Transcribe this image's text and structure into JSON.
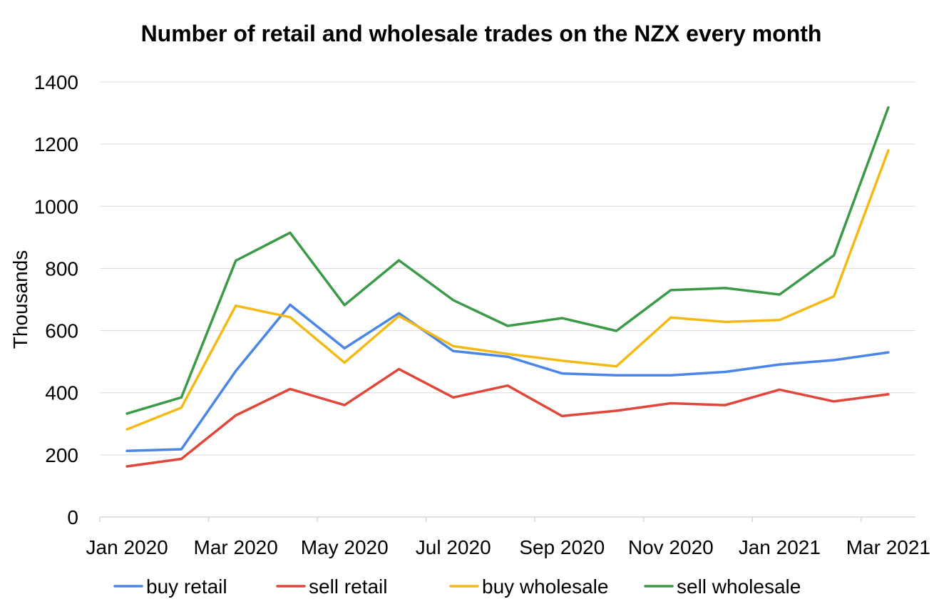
{
  "chart_data": {
    "type": "line",
    "title": "Number of retail and wholesale trades on the NZX every month",
    "ylabel": "Thousands",
    "xlabel": "",
    "ylim": [
      0,
      1400
    ],
    "y_ticks": [
      "0",
      "200",
      "400",
      "600",
      "800",
      "1000",
      "1200",
      "1400"
    ],
    "x": [
      "Jan 2020",
      "Feb 2020",
      "Mar 2020",
      "Apr 2020",
      "May 2020",
      "Jun 2020",
      "Jul 2020",
      "Aug 2020",
      "Sep 2020",
      "Oct 2020",
      "Nov 2020",
      "Dec 2020",
      "Jan 2021",
      "Feb 2021",
      "Mar 2021"
    ],
    "x_tick_labels": [
      "Jan 2020",
      "Mar 2020",
      "May 2020",
      "Jul 2020",
      "Sep 2020",
      "Nov 2020",
      "Jan 2021",
      "Mar 2021"
    ],
    "grid": true,
    "legend_position": "bottom",
    "series": [
      {
        "name": "buy retail",
        "color": "#4a86e8",
        "values": [
          213,
          218,
          470,
          683,
          543,
          656,
          534,
          516,
          462,
          456,
          456,
          467,
          491,
          505,
          530
        ]
      },
      {
        "name": "sell retail",
        "color": "#e0463a",
        "values": [
          163,
          187,
          327,
          412,
          360,
          476,
          385,
          423,
          325,
          342,
          366,
          360,
          410,
          372,
          395
        ]
      },
      {
        "name": "buy wholesale",
        "color": "#f4b915",
        "values": [
          282,
          352,
          680,
          643,
          497,
          647,
          550,
          525,
          503,
          485,
          642,
          628,
          634,
          710,
          1180
        ]
      },
      {
        "name": "sell wholesale",
        "color": "#3a9a48",
        "values": [
          333,
          385,
          825,
          915,
          682,
          826,
          698,
          615,
          640,
          599,
          730,
          737,
          716,
          842,
          1318
        ]
      }
    ]
  }
}
